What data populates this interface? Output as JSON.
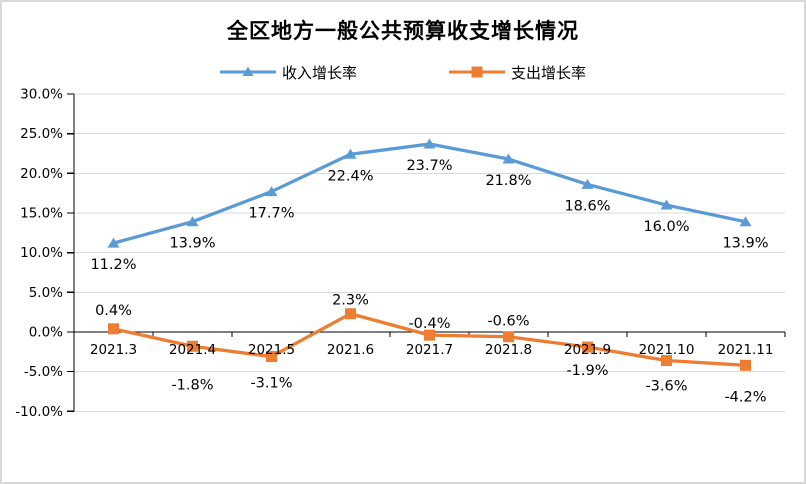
{
  "chart_data": {
    "type": "line",
    "title": "全区地方一般公共预算收支增长情况",
    "categories": [
      "2021.3",
      "2021.4",
      "2021.5",
      "2021.6",
      "2021.7",
      "2021.8",
      "2021.9",
      "2021.10",
      "2021.11"
    ],
    "series": [
      {
        "name": "收入增长率",
        "color": "#5B9BD5",
        "marker": "triangle",
        "values": [
          11.2,
          13.9,
          17.7,
          22.4,
          23.7,
          21.8,
          18.6,
          16.0,
          13.9
        ],
        "labels": [
          "11.2%",
          "13.9%",
          "17.7%",
          "22.4%",
          "23.7%",
          "21.8%",
          "18.6%",
          "16.0%",
          "13.9%"
        ],
        "label_dy": [
          26,
          26,
          26,
          26,
          26,
          26,
          26,
          26,
          26
        ]
      },
      {
        "name": "支出增长率",
        "color": "#ED7D31",
        "marker": "square",
        "values": [
          0.4,
          -1.8,
          -3.1,
          2.3,
          -0.4,
          -0.6,
          -1.9,
          -3.6,
          -4.2
        ],
        "labels": [
          "0.4%",
          "-1.8%",
          "-3.1%",
          "2.3%",
          "-0.4%",
          "-0.6%",
          "-1.9%",
          "-3.6%",
          "-4.2%"
        ],
        "label_dy": [
          -14,
          43,
          31,
          -9,
          -7,
          -11,
          28,
          30,
          36
        ]
      }
    ],
    "y_axis": {
      "min": -10,
      "max": 30,
      "step": 5,
      "tick_labels": [
        "30.0%",
        "25.0%",
        "20.0%",
        "15.0%",
        "10.0%",
        "5.0%",
        "0.0%",
        "-5.0%",
        "-10.0%"
      ]
    },
    "grid": true,
    "grid_color": "#D9D9D9",
    "axis_color": "#000000",
    "legend_position": "top"
  }
}
